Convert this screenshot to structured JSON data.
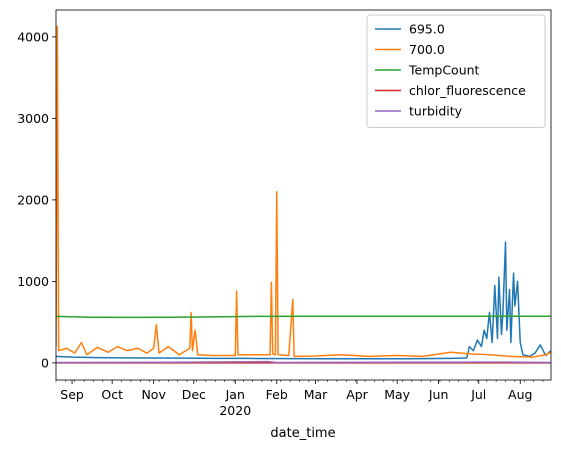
{
  "chart_data": {
    "type": "line",
    "title": "",
    "xlabel": "date_time",
    "ylabel": "",
    "x_range": [
      "2019-08-20",
      "2020-08-24"
    ],
    "ylim": [
      -210,
      4330
    ],
    "y_ticks": [
      0,
      1000,
      2000,
      3000,
      4000
    ],
    "x_ticks": [
      {
        "date": "2019-09-01",
        "label": "Sep",
        "sub": ""
      },
      {
        "date": "2019-10-01",
        "label": "Oct",
        "sub": ""
      },
      {
        "date": "2019-11-01",
        "label": "Nov",
        "sub": ""
      },
      {
        "date": "2019-12-01",
        "label": "Dec",
        "sub": ""
      },
      {
        "date": "2020-01-01",
        "label": "Jan",
        "sub": "2020"
      },
      {
        "date": "2020-02-01",
        "label": "Feb",
        "sub": ""
      },
      {
        "date": "2020-03-01",
        "label": "Mar",
        "sub": ""
      },
      {
        "date": "2020-04-01",
        "label": "Apr",
        "sub": ""
      },
      {
        "date": "2020-05-01",
        "label": "May",
        "sub": ""
      },
      {
        "date": "2020-06-01",
        "label": "Jun",
        "sub": ""
      },
      {
        "date": "2020-07-01",
        "label": "Jul",
        "sub": ""
      },
      {
        "date": "2020-08-01",
        "label": "Aug",
        "sub": ""
      }
    ],
    "grid": false,
    "legend_position": "top-right",
    "series": [
      {
        "name": "695.0",
        "color": "#1f77b4",
        "points": [
          [
            "2019-08-20",
            80
          ],
          [
            "2019-09-01",
            70
          ],
          [
            "2019-09-20",
            65
          ],
          [
            "2019-10-10",
            62
          ],
          [
            "2019-11-01",
            60
          ],
          [
            "2019-11-25",
            58
          ],
          [
            "2019-12-15",
            55
          ],
          [
            "2020-01-10",
            55
          ],
          [
            "2020-02-10",
            52
          ],
          [
            "2020-03-10",
            50
          ],
          [
            "2020-04-10",
            50
          ],
          [
            "2020-05-10",
            50
          ],
          [
            "2020-06-10",
            55
          ],
          [
            "2020-06-22",
            60
          ],
          [
            "2020-06-24",
            200
          ],
          [
            "2020-06-27",
            150
          ],
          [
            "2020-06-30",
            280
          ],
          [
            "2020-07-03",
            200
          ],
          [
            "2020-07-05",
            400
          ],
          [
            "2020-07-07",
            300
          ],
          [
            "2020-07-09",
            620
          ],
          [
            "2020-07-11",
            250
          ],
          [
            "2020-07-13",
            950
          ],
          [
            "2020-07-15",
            300
          ],
          [
            "2020-07-16",
            1050
          ],
          [
            "2020-07-18",
            350
          ],
          [
            "2020-07-19",
            600
          ],
          [
            "2020-07-21",
            1480
          ],
          [
            "2020-07-22",
            400
          ],
          [
            "2020-07-24",
            900
          ],
          [
            "2020-07-25",
            250
          ],
          [
            "2020-07-27",
            1100
          ],
          [
            "2020-07-28",
            700
          ],
          [
            "2020-07-30",
            1000
          ],
          [
            "2020-08-01",
            250
          ],
          [
            "2020-08-03",
            100
          ],
          [
            "2020-08-08",
            80
          ],
          [
            "2020-08-12",
            120
          ],
          [
            "2020-08-16",
            220
          ],
          [
            "2020-08-20",
            90
          ],
          [
            "2020-08-24",
            150
          ]
        ]
      },
      {
        "name": "700.0",
        "color": "#ff7f0e",
        "points": [
          [
            "2019-08-20",
            200
          ],
          [
            "2019-08-21",
            4130
          ],
          [
            "2019-08-22",
            150
          ],
          [
            "2019-08-28",
            180
          ],
          [
            "2019-09-03",
            120
          ],
          [
            "2019-09-08",
            250
          ],
          [
            "2019-09-12",
            100
          ],
          [
            "2019-09-20",
            190
          ],
          [
            "2019-09-28",
            130
          ],
          [
            "2019-10-05",
            200
          ],
          [
            "2019-10-12",
            150
          ],
          [
            "2019-10-20",
            180
          ],
          [
            "2019-10-27",
            120
          ],
          [
            "2019-11-01",
            180
          ],
          [
            "2019-11-03",
            470
          ],
          [
            "2019-11-05",
            120
          ],
          [
            "2019-11-12",
            200
          ],
          [
            "2019-11-20",
            100
          ],
          [
            "2019-11-28",
            180
          ],
          [
            "2019-11-29",
            620
          ],
          [
            "2019-11-30",
            150
          ],
          [
            "2019-12-02",
            400
          ],
          [
            "2019-12-04",
            100
          ],
          [
            "2019-12-15",
            90
          ],
          [
            "2020-01-01",
            90
          ],
          [
            "2020-01-02",
            880
          ],
          [
            "2020-01-03",
            100
          ],
          [
            "2020-01-15",
            100
          ],
          [
            "2020-01-27",
            100
          ],
          [
            "2020-01-28",
            990
          ],
          [
            "2020-01-29",
            110
          ],
          [
            "2020-01-31",
            100
          ],
          [
            "2020-02-01",
            2100
          ],
          [
            "2020-02-02",
            100
          ],
          [
            "2020-02-10",
            90
          ],
          [
            "2020-02-13",
            780
          ],
          [
            "2020-02-14",
            80
          ],
          [
            "2020-03-01",
            85
          ],
          [
            "2020-03-20",
            100
          ],
          [
            "2020-04-10",
            80
          ],
          [
            "2020-05-01",
            90
          ],
          [
            "2020-05-20",
            80
          ],
          [
            "2020-06-10",
            130
          ],
          [
            "2020-06-25",
            110
          ],
          [
            "2020-07-10",
            100
          ],
          [
            "2020-07-25",
            80
          ],
          [
            "2020-08-10",
            70
          ],
          [
            "2020-08-20",
            100
          ],
          [
            "2020-08-24",
            130
          ]
        ]
      },
      {
        "name": "TempCount",
        "color": "#2ca02c",
        "points": [
          [
            "2019-08-20",
            570
          ],
          [
            "2019-09-15",
            560
          ],
          [
            "2019-10-15",
            558
          ],
          [
            "2019-11-15",
            560
          ],
          [
            "2019-12-15",
            565
          ],
          [
            "2020-01-15",
            570
          ],
          [
            "2020-03-01",
            572
          ],
          [
            "2020-05-01",
            572
          ],
          [
            "2020-07-01",
            572
          ],
          [
            "2020-08-24",
            572
          ]
        ]
      },
      {
        "name": "chlor_fluorescence",
        "color": "#d62728",
        "points": [
          [
            "2019-08-20",
            0
          ],
          [
            "2020-01-01",
            0
          ],
          [
            "2020-05-01",
            0
          ],
          [
            "2020-08-24",
            0
          ]
        ]
      },
      {
        "name": "turbidity",
        "color": "#9467bd",
        "points": [
          [
            "2019-08-20",
            5
          ],
          [
            "2019-11-15",
            8
          ],
          [
            "2020-01-25",
            15
          ],
          [
            "2020-02-01",
            5
          ],
          [
            "2020-07-15",
            10
          ],
          [
            "2020-08-24",
            5
          ]
        ]
      }
    ]
  }
}
